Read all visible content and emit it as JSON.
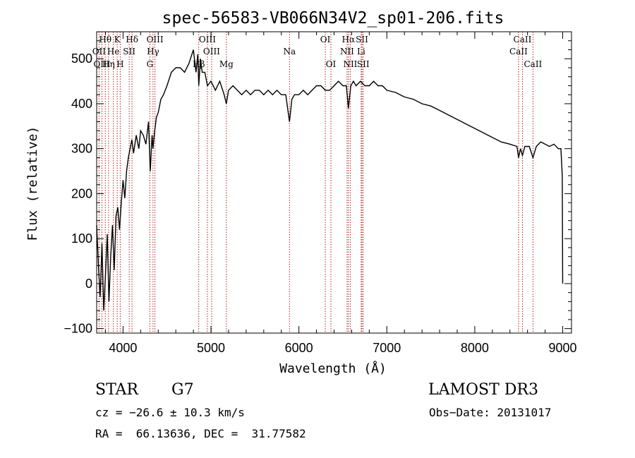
{
  "chart_data": {
    "type": "line",
    "title": "spec-56583-VB066N34V2_sp01-206.fits",
    "xlabel": "Wavelength (Å)",
    "ylabel": "Flux (relative)",
    "xlim": [
      3700,
      9100
    ],
    "ylim": [
      -110,
      560
    ],
    "xticks": [
      4000,
      5000,
      6000,
      7000,
      8000,
      9000
    ],
    "yticks": [
      -100,
      0,
      100,
      200,
      300,
      400,
      500
    ],
    "tick_labels_x": [
      "4000",
      "5000",
      "6000",
      "7000",
      "8000",
      "9000"
    ],
    "tick_labels_y": [
      "−100",
      "0",
      "100",
      "200",
      "300",
      "400",
      "500"
    ],
    "grid": false,
    "line_color": "#000000",
    "marker_color": "#b22222",
    "series": [
      {
        "x": [
          3700,
          3720,
          3740,
          3760,
          3780,
          3800,
          3820,
          3840,
          3860,
          3880,
          3900,
          3920,
          3940,
          3960,
          3980,
          4000,
          4020,
          4040,
          4060,
          4080,
          4100,
          4120,
          4150,
          4180,
          4200,
          4230,
          4260,
          4290,
          4310,
          4330,
          4340,
          4360,
          4380,
          4400,
          4430,
          4460,
          4500,
          4550,
          4600,
          4650,
          4700,
          4750,
          4800,
          4830,
          4850,
          4861,
          4880,
          4900,
          4930,
          4960,
          5000,
          5050,
          5100,
          5150,
          5175,
          5200,
          5250,
          5300,
          5350,
          5400,
          5450,
          5500,
          5550,
          5600,
          5650,
          5700,
          5750,
          5800,
          5850,
          5893,
          5920,
          5950,
          6000,
          6050,
          6100,
          6150,
          6200,
          6250,
          6300,
          6350,
          6400,
          6450,
          6500,
          6540,
          6563,
          6590,
          6620,
          6650,
          6700,
          6750,
          6800,
          6850,
          6900,
          6950,
          7000,
          7100,
          7200,
          7300,
          7400,
          7500,
          7600,
          7700,
          7800,
          7900,
          8000,
          8100,
          8200,
          8300,
          8400,
          8480,
          8498,
          8520,
          8542,
          8570,
          8620,
          8662,
          8700,
          8750,
          8800,
          8850,
          8900,
          8950,
          8980,
          8995,
          9000
        ],
        "values": [
          130,
          40,
          -30,
          90,
          -60,
          20,
          110,
          -40,
          60,
          130,
          30,
          150,
          170,
          120,
          180,
          230,
          190,
          250,
          280,
          300,
          320,
          290,
          330,
          300,
          340,
          330,
          310,
          360,
          250,
          330,
          300,
          340,
          370,
          380,
          410,
          420,
          440,
          470,
          480,
          480,
          470,
          490,
          520,
          470,
          510,
          440,
          500,
          470,
          470,
          440,
          450,
          430,
          450,
          420,
          400,
          430,
          440,
          430,
          420,
          430,
          420,
          430,
          430,
          420,
          430,
          420,
          430,
          420,
          420,
          360,
          410,
          420,
          420,
          430,
          420,
          430,
          440,
          440,
          430,
          430,
          440,
          450,
          440,
          440,
          390,
          440,
          450,
          440,
          450,
          440,
          440,
          450,
          440,
          440,
          430,
          425,
          415,
          410,
          400,
          395,
          385,
          375,
          365,
          355,
          345,
          335,
          325,
          315,
          310,
          305,
          280,
          300,
          285,
          305,
          305,
          280,
          305,
          315,
          310,
          305,
          310,
          300,
          300,
          240,
          0
        ]
      }
    ],
    "line_markers": [
      {
        "label": "Hθ",
        "x": 3798,
        "row": 0
      },
      {
        "label": "OII",
        "x": 3727,
        "row": 1
      },
      {
        "label": "OIII",
        "x": 3760,
        "row": 2
      },
      {
        "label": "Hη",
        "x": 3835,
        "row": 2
      },
      {
        "label": "He",
        "x": 3889,
        "row": 1
      },
      {
        "label": "K",
        "x": 3934,
        "row": 0
      },
      {
        "label": "H",
        "x": 3968,
        "row": 2
      },
      {
        "label": "SII",
        "x": 4070,
        "row": 1
      },
      {
        "label": "Hδ",
        "x": 4102,
        "row": 0
      },
      {
        "label": "OIII",
        "x": 4363,
        "row": 0
      },
      {
        "label": "Hγ",
        "x": 4341,
        "row": 1
      },
      {
        "label": "G",
        "x": 4305,
        "row": 2
      },
      {
        "label": "Hβ",
        "x": 4861,
        "row": 2
      },
      {
        "label": "OIII",
        "x": 4959,
        "row": 0
      },
      {
        "label": "OIII",
        "x": 5007,
        "row": 1
      },
      {
        "label": "Mg",
        "x": 5175,
        "row": 2
      },
      {
        "label": "Na",
        "x": 5893,
        "row": 1
      },
      {
        "label": "OI",
        "x": 6300,
        "row": 0
      },
      {
        "label": "OI",
        "x": 6364,
        "row": 2
      },
      {
        "label": "Hα",
        "x": 6563,
        "row": 0
      },
      {
        "label": "NII",
        "x": 6548,
        "row": 1
      },
      {
        "label": "NII",
        "x": 6584,
        "row": 2
      },
      {
        "label": "SII",
        "x": 6717,
        "row": 0
      },
      {
        "label": "Li",
        "x": 6708,
        "row": 1
      },
      {
        "label": "SII",
        "x": 6731,
        "row": 2
      },
      {
        "label": "CaII",
        "x": 8542,
        "row": 0
      },
      {
        "label": "CaII",
        "x": 8498,
        "row": 1
      },
      {
        "label": "CaII",
        "x": 8662,
        "row": 2
      }
    ]
  },
  "info": {
    "object_class": "STAR",
    "subclass": "G7",
    "survey": "LAMOST DR3",
    "cz": "cz = −26.6 ± 10.3 km/s",
    "obs_date": "Obs−Date: 20131017",
    "coords": "RA =  66.13636, DEC =  31.77582"
  }
}
